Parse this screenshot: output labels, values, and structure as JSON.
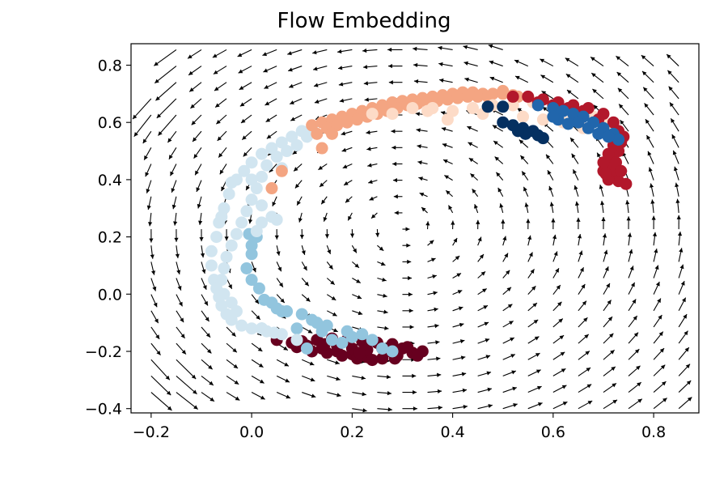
{
  "chart_data": {
    "type": "scatter",
    "title": "Flow Embedding",
    "xlabel": "",
    "ylabel": "",
    "xlim": [
      -0.24,
      0.89
    ],
    "ylim": [
      -0.415,
      0.875
    ],
    "x_ticks": [
      -0.2,
      0.0,
      0.2,
      0.4,
      0.6,
      0.8
    ],
    "x_tick_labels": [
      "−0.2",
      "0.0",
      "0.2",
      "0.4",
      "0.6",
      "0.8"
    ],
    "y_ticks": [
      -0.4,
      -0.2,
      0.0,
      0.2,
      0.4,
      0.6,
      0.8
    ],
    "y_tick_labels": [
      "−0.4",
      "−0.2",
      "0.0",
      "0.2",
      "0.4",
      "0.6",
      "0.8"
    ],
    "grid": false,
    "colormap": "RdBu",
    "quiver_field": {
      "description": "flow field vectors",
      "color": "#000000"
    },
    "series": [
      {
        "color": "#67001f",
        "points": [
          [
            0.05,
            -0.16
          ],
          [
            0.08,
            -0.17
          ],
          [
            0.11,
            -0.18
          ],
          [
            0.14,
            -0.19
          ],
          [
            0.17,
            -0.2
          ],
          [
            0.2,
            -0.21
          ],
          [
            0.23,
            -0.22
          ],
          [
            0.26,
            -0.225
          ],
          [
            0.29,
            -0.215
          ],
          [
            0.32,
            -0.205
          ],
          [
            0.34,
            -0.2
          ],
          [
            0.31,
            -0.185
          ],
          [
            0.28,
            -0.175
          ],
          [
            0.25,
            -0.17
          ],
          [
            0.22,
            -0.165
          ],
          [
            0.19,
            -0.16
          ],
          [
            0.16,
            -0.155
          ],
          [
            0.13,
            -0.16
          ],
          [
            0.1,
            -0.165
          ],
          [
            0.12,
            -0.2
          ],
          [
            0.15,
            -0.205
          ],
          [
            0.18,
            -0.215
          ],
          [
            0.21,
            -0.225
          ],
          [
            0.24,
            -0.23
          ],
          [
            0.27,
            -0.2
          ],
          [
            0.3,
            -0.19
          ],
          [
            0.2,
            -0.19
          ],
          [
            0.23,
            -0.195
          ],
          [
            0.26,
            -0.19
          ],
          [
            0.17,
            -0.18
          ],
          [
            0.09,
            -0.185
          ],
          [
            0.145,
            -0.175
          ],
          [
            0.285,
            -0.225
          ],
          [
            0.215,
            -0.205
          ],
          [
            0.33,
            -0.215
          ]
        ]
      },
      {
        "color": "#92c5de",
        "points": [
          [
            -0.01,
            0.09
          ],
          [
            0.0,
            0.05
          ],
          [
            0.015,
            0.02
          ],
          [
            0.025,
            -0.02
          ],
          [
            0.04,
            -0.03
          ],
          [
            0.05,
            -0.05
          ],
          [
            0.07,
            -0.06
          ],
          [
            0.1,
            -0.07
          ],
          [
            0.12,
            -0.09
          ],
          [
            0.13,
            -0.1
          ],
          [
            0.15,
            -0.11
          ],
          [
            0.19,
            -0.13
          ],
          [
            0.2,
            -0.15
          ],
          [
            0.22,
            -0.14
          ],
          [
            0.24,
            -0.16
          ],
          [
            0.16,
            -0.16
          ],
          [
            0.11,
            -0.19
          ],
          [
            0.26,
            -0.19
          ],
          [
            0.28,
            -0.2
          ],
          [
            0.0,
            0.17
          ],
          [
            0.01,
            0.2
          ],
          [
            -0.005,
            0.21
          ],
          [
            0.0,
            0.14
          ],
          [
            0.09,
            -0.12
          ],
          [
            0.14,
            -0.13
          ],
          [
            0.18,
            -0.17
          ],
          [
            0.06,
            -0.06
          ],
          [
            0.02,
            -0.12
          ]
        ]
      },
      {
        "color": "#d1e5f0",
        "points": [
          [
            -0.08,
            0.15
          ],
          [
            -0.08,
            0.1
          ],
          [
            -0.075,
            0.05
          ],
          [
            -0.07,
            0.02
          ],
          [
            -0.065,
            -0.01
          ],
          [
            -0.06,
            -0.04
          ],
          [
            -0.05,
            -0.07
          ],
          [
            -0.04,
            -0.09
          ],
          [
            -0.02,
            -0.11
          ],
          [
            0.0,
            -0.12
          ],
          [
            0.03,
            -0.13
          ],
          [
            0.06,
            -0.14
          ],
          [
            0.09,
            -0.16
          ],
          [
            -0.07,
            0.2
          ],
          [
            -0.065,
            0.25
          ],
          [
            -0.055,
            0.3
          ],
          [
            -0.045,
            0.35
          ],
          [
            -0.03,
            0.4
          ],
          [
            -0.015,
            0.43
          ],
          [
            0.0,
            0.46
          ],
          [
            0.02,
            0.49
          ],
          [
            0.04,
            0.51
          ],
          [
            0.06,
            0.53
          ],
          [
            0.08,
            0.55
          ],
          [
            0.1,
            0.57
          ],
          [
            0.12,
            0.58
          ],
          [
            0.11,
            0.55
          ],
          [
            0.09,
            0.52
          ],
          [
            0.07,
            0.5
          ],
          [
            0.05,
            0.48
          ],
          [
            0.03,
            0.45
          ],
          [
            0.02,
            0.41
          ],
          [
            0.01,
            0.37
          ],
          [
            0.0,
            0.33
          ],
          [
            -0.01,
            0.29
          ],
          [
            -0.02,
            0.25
          ],
          [
            -0.03,
            0.21
          ],
          [
            -0.04,
            0.17
          ],
          [
            -0.05,
            0.13
          ],
          [
            -0.055,
            0.09
          ],
          [
            -0.06,
            0.05
          ],
          [
            -0.055,
            0.0
          ],
          [
            -0.04,
            -0.03
          ],
          [
            -0.03,
            -0.06
          ],
          [
            0.01,
            0.22
          ],
          [
            0.02,
            0.25
          ],
          [
            0.04,
            0.27
          ],
          [
            0.05,
            0.26
          ],
          [
            0.02,
            -0.12
          ],
          [
            0.045,
            -0.135
          ],
          [
            -0.06,
            0.27
          ],
          [
            -0.04,
            0.39
          ],
          [
            0.0,
            0.4
          ],
          [
            0.06,
            0.44
          ],
          [
            0.02,
            0.31
          ]
        ]
      },
      {
        "color": "#f4a582",
        "points": [
          [
            0.12,
            0.59
          ],
          [
            0.14,
            0.6
          ],
          [
            0.16,
            0.61
          ],
          [
            0.18,
            0.62
          ],
          [
            0.2,
            0.63
          ],
          [
            0.22,
            0.64
          ],
          [
            0.24,
            0.65
          ],
          [
            0.26,
            0.66
          ],
          [
            0.28,
            0.67
          ],
          [
            0.3,
            0.675
          ],
          [
            0.32,
            0.68
          ],
          [
            0.34,
            0.685
          ],
          [
            0.36,
            0.69
          ],
          [
            0.38,
            0.695
          ],
          [
            0.4,
            0.7
          ],
          [
            0.42,
            0.705
          ],
          [
            0.44,
            0.705
          ],
          [
            0.46,
            0.7
          ],
          [
            0.48,
            0.7
          ],
          [
            0.5,
            0.7
          ],
          [
            0.52,
            0.695
          ],
          [
            0.15,
            0.58
          ],
          [
            0.17,
            0.59
          ],
          [
            0.19,
            0.6
          ],
          [
            0.21,
            0.61
          ],
          [
            0.23,
            0.62
          ],
          [
            0.25,
            0.63
          ],
          [
            0.27,
            0.64
          ],
          [
            0.29,
            0.65
          ],
          [
            0.31,
            0.66
          ],
          [
            0.33,
            0.665
          ],
          [
            0.35,
            0.67
          ],
          [
            0.37,
            0.675
          ],
          [
            0.39,
            0.68
          ],
          [
            0.41,
            0.685
          ],
          [
            0.43,
            0.69
          ],
          [
            0.45,
            0.69
          ],
          [
            0.47,
            0.69
          ],
          [
            0.14,
            0.51
          ],
          [
            0.06,
            0.43
          ],
          [
            0.04,
            0.37
          ],
          [
            0.13,
            0.56
          ],
          [
            0.16,
            0.56
          ],
          [
            0.5,
            0.71
          ],
          [
            0.53,
            0.69
          ]
        ]
      },
      {
        "color": "#fddbc7",
        "points": [
          [
            0.24,
            0.63
          ],
          [
            0.28,
            0.63
          ],
          [
            0.32,
            0.65
          ],
          [
            0.36,
            0.65
          ],
          [
            0.4,
            0.64
          ],
          [
            0.44,
            0.65
          ],
          [
            0.48,
            0.66
          ],
          [
            0.52,
            0.66
          ],
          [
            0.56,
            0.67
          ],
          [
            0.6,
            0.65
          ],
          [
            0.63,
            0.64
          ],
          [
            0.66,
            0.63
          ],
          [
            0.54,
            0.62
          ],
          [
            0.58,
            0.61
          ],
          [
            0.62,
            0.6
          ],
          [
            0.66,
            0.58
          ],
          [
            0.7,
            0.6
          ],
          [
            0.72,
            0.58
          ],
          [
            0.64,
            0.61
          ],
          [
            0.68,
            0.62
          ],
          [
            0.39,
            0.61
          ],
          [
            0.35,
            0.64
          ],
          [
            0.46,
            0.63
          ]
        ]
      },
      {
        "color": "#b2182b",
        "points": [
          [
            0.52,
            0.69
          ],
          [
            0.55,
            0.69
          ],
          [
            0.58,
            0.68
          ],
          [
            0.61,
            0.67
          ],
          [
            0.64,
            0.66
          ],
          [
            0.67,
            0.65
          ],
          [
            0.7,
            0.63
          ],
          [
            0.72,
            0.6
          ],
          [
            0.73,
            0.57
          ],
          [
            0.735,
            0.53
          ],
          [
            0.73,
            0.5
          ],
          [
            0.72,
            0.47
          ],
          [
            0.715,
            0.44
          ],
          [
            0.72,
            0.41
          ],
          [
            0.73,
            0.395
          ],
          [
            0.745,
            0.385
          ],
          [
            0.71,
            0.4
          ],
          [
            0.7,
            0.43
          ],
          [
            0.7,
            0.46
          ],
          [
            0.71,
            0.49
          ],
          [
            0.72,
            0.52
          ],
          [
            0.6,
            0.66
          ],
          [
            0.63,
            0.65
          ],
          [
            0.66,
            0.64
          ],
          [
            0.69,
            0.61
          ],
          [
            0.57,
            0.67
          ],
          [
            0.74,
            0.55
          ],
          [
            0.725,
            0.46
          ],
          [
            0.705,
            0.42
          ],
          [
            0.735,
            0.43
          ]
        ]
      },
      {
        "color": "#2166ac",
        "points": [
          [
            0.57,
            0.66
          ],
          [
            0.6,
            0.65
          ],
          [
            0.62,
            0.64
          ],
          [
            0.64,
            0.63
          ],
          [
            0.66,
            0.62
          ],
          [
            0.68,
            0.6
          ],
          [
            0.7,
            0.58
          ],
          [
            0.72,
            0.56
          ],
          [
            0.73,
            0.54
          ],
          [
            0.65,
            0.6
          ],
          [
            0.67,
            0.58
          ],
          [
            0.69,
            0.56
          ],
          [
            0.71,
            0.55
          ],
          [
            0.61,
            0.61
          ],
          [
            0.63,
            0.595
          ],
          [
            0.6,
            0.62
          ]
        ]
      },
      {
        "color": "#053061",
        "points": [
          [
            0.47,
            0.655
          ],
          [
            0.5,
            0.655
          ],
          [
            0.5,
            0.6
          ],
          [
            0.52,
            0.59
          ],
          [
            0.54,
            0.58
          ],
          [
            0.56,
            0.57
          ],
          [
            0.57,
            0.555
          ],
          [
            0.58,
            0.545
          ],
          [
            0.545,
            0.56
          ],
          [
            0.53,
            0.57
          ]
        ]
      }
    ]
  }
}
